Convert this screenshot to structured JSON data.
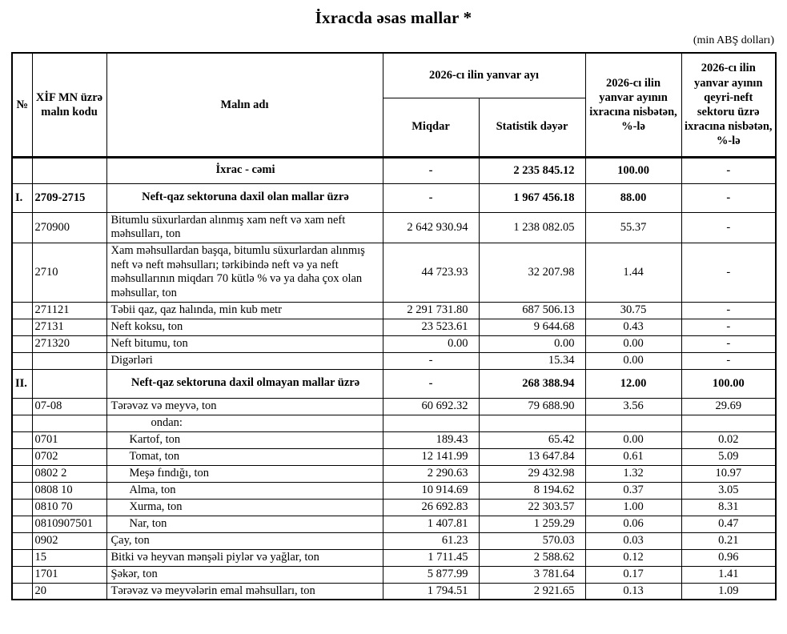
{
  "page": {
    "title": "İxracda əsas mallar *",
    "unit_note": "(min ABŞ dolları)"
  },
  "table": {
    "headers": {
      "no": "№",
      "code": "XİF MN üzrə malın kodu",
      "name": "Malın adı",
      "period_group": "2026-cı ilin yanvar ayı",
      "quantity": "Miqdar",
      "stat_value": "Statistik dəyər",
      "share_total": "2026-cı ilin yanvar ayının ixracına nisbətən, %-lə",
      "share_nonoil": "2026-cı ilin yanvar ayının qeyri-neft sektoru üzrə ixracına nisbətən, %-lə"
    },
    "rows": [
      {
        "type": "total",
        "no": "",
        "code": "",
        "name": "İxrac - cəmi",
        "qty": "-",
        "value": "2 235 845.12",
        "share": "100.00",
        "nonoil": "-"
      },
      {
        "type": "section",
        "no": "I.",
        "code": "2709-2715",
        "name": "Neft-qaz sektoruna daxil olan mallar üzrə",
        "qty": "-",
        "value": "1 967 456.18",
        "share": "88.00",
        "nonoil": "-"
      },
      {
        "type": "item",
        "no": "",
        "code": "270900",
        "name": "Bitumlu süxurlardan alınmış xam neft və xam neft məhsulları, ton",
        "qty": "2 642 930.94",
        "value": "1 238 082.05",
        "share": "55.37",
        "nonoil": "-"
      },
      {
        "type": "item",
        "no": "",
        "code": "2710",
        "name": "Xam məhsullardan başqa, bitumlu süxurlardan alınmış neft və neft məhsulları; tərkibində neft və ya neft məhsullarının miqdarı 70 kütlə % və ya daha çox olan məhsullar, ton",
        "qty": "44 723.93",
        "value": "32 207.98",
        "share": "1.44",
        "nonoil": "-"
      },
      {
        "type": "item",
        "no": "",
        "code": "271121",
        "name": "Təbii qaz, qaz halında, min kub metr",
        "qty": "2 291 731.80",
        "value": "687 506.13",
        "share": "30.75",
        "nonoil": "-"
      },
      {
        "type": "item",
        "no": "",
        "code": "27131",
        "name": "Neft koksu, ton",
        "qty": "23 523.61",
        "value": "9 644.68",
        "share": "0.43",
        "nonoil": "-"
      },
      {
        "type": "item",
        "no": "",
        "code": "271320",
        "name": "Neft bitumu, ton",
        "qty": "0.00",
        "value": "0.00",
        "share": "0.00",
        "nonoil": "-"
      },
      {
        "type": "item",
        "no": "",
        "code": "",
        "name": "Digərləri",
        "qty": "-",
        "value": "15.34",
        "share": "0.00",
        "nonoil": "-"
      },
      {
        "type": "section",
        "no": "II.",
        "code": "",
        "name": "Neft-qaz sektoruna daxil olmayan mallar üzrə",
        "qty": "-",
        "value": "268 388.94",
        "share": "12.00",
        "nonoil": "100.00"
      },
      {
        "type": "item",
        "no": "",
        "code": "07-08",
        "name": "Tərəvəz və meyvə, ton",
        "qty": "60 692.32",
        "value": "79 688.90",
        "share": "3.56",
        "nonoil": "29.69"
      },
      {
        "type": "label",
        "no": "",
        "code": "",
        "name": "ondan:",
        "qty": "",
        "value": "",
        "share": "",
        "nonoil": ""
      },
      {
        "type": "subitem",
        "no": "",
        "code": "0701",
        "name": "Kartof, ton",
        "qty": "189.43",
        "value": "65.42",
        "share": "0.00",
        "nonoil": "0.02"
      },
      {
        "type": "subitem",
        "no": "",
        "code": "0702",
        "name": "Tomat, ton",
        "qty": "12 141.99",
        "value": "13 647.84",
        "share": "0.61",
        "nonoil": "5.09"
      },
      {
        "type": "subitem",
        "no": "",
        "code": "0802 2",
        "name": "Meşə fındığı, ton",
        "qty": "2 290.63",
        "value": "29 432.98",
        "share": "1.32",
        "nonoil": "10.97"
      },
      {
        "type": "subitem",
        "no": "",
        "code": "0808 10",
        "name": "Alma, ton",
        "qty": "10 914.69",
        "value": "8 194.62",
        "share": "0.37",
        "nonoil": "3.05"
      },
      {
        "type": "subitem",
        "no": "",
        "code": "0810 70",
        "name": "Xurma, ton",
        "qty": "26 692.83",
        "value": "22 303.57",
        "share": "1.00",
        "nonoil": "8.31"
      },
      {
        "type": "subitem",
        "no": "",
        "code": "0810907501",
        "name": "Nar, ton",
        "qty": "1 407.81",
        "value": "1 259.29",
        "share": "0.06",
        "nonoil": "0.47"
      },
      {
        "type": "item",
        "no": "",
        "code": "0902",
        "name": "Çay, ton",
        "qty": "61.23",
        "value": "570.03",
        "share": "0.03",
        "nonoil": "0.21"
      },
      {
        "type": "item",
        "no": "",
        "code": "15",
        "name": "Bitki və heyvan mənşəli piylər və yağlar, ton",
        "qty": "1 711.45",
        "value": "2 588.62",
        "share": "0.12",
        "nonoil": "0.96"
      },
      {
        "type": "item",
        "no": "",
        "code": "1701",
        "name": "Şəkər, ton",
        "qty": "5 877.99",
        "value": "3 781.64",
        "share": "0.17",
        "nonoil": "1.41"
      },
      {
        "type": "item",
        "no": "",
        "code": "20",
        "name": "Tərəvəz və meyvələrin emal məhsulları, ton",
        "qty": "1 794.51",
        "value": "2 921.65",
        "share": "0.13",
        "nonoil": "1.09"
      }
    ]
  }
}
